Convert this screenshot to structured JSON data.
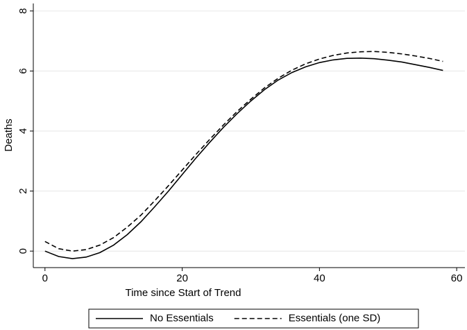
{
  "chart_data": {
    "type": "line",
    "xlabel": "Time since Start of Trend",
    "ylabel": "Deaths",
    "x": [
      0,
      2,
      4,
      6,
      8,
      10,
      12,
      14,
      16,
      18,
      20,
      22,
      24,
      26,
      28,
      30,
      32,
      34,
      36,
      38,
      40,
      42,
      44,
      46,
      48,
      50,
      52,
      54,
      56,
      58
    ],
    "series": [
      {
        "name": "No Essentials",
        "color": "#000000",
        "line_style": "solid",
        "values": [
          0.0,
          -0.18,
          -0.25,
          -0.2,
          -0.05,
          0.2,
          0.55,
          0.98,
          1.48,
          2.0,
          2.55,
          3.1,
          3.62,
          4.12,
          4.58,
          5.0,
          5.38,
          5.7,
          5.95,
          6.14,
          6.28,
          6.37,
          6.42,
          6.43,
          6.41,
          6.36,
          6.3,
          6.21,
          6.12,
          6.02
        ]
      },
      {
        "name": "Essentials (one SD)",
        "color": "#000000",
        "line_style": "dashed",
        "values": [
          0.32,
          0.08,
          0.0,
          0.05,
          0.2,
          0.45,
          0.8,
          1.2,
          1.68,
          2.18,
          2.7,
          3.22,
          3.72,
          4.2,
          4.65,
          5.06,
          5.44,
          5.76,
          6.03,
          6.24,
          6.4,
          6.52,
          6.6,
          6.64,
          6.65,
          6.62,
          6.57,
          6.5,
          6.42,
          6.32
        ]
      }
    ],
    "xlim": [
      -1.7,
      61.2
    ],
    "xticks": [
      0,
      20,
      40,
      60
    ],
    "ylim": [
      -0.55,
      8.25
    ],
    "yticks": [
      0,
      2,
      4,
      6,
      8
    ],
    "grid": true,
    "legend": "bottom"
  }
}
